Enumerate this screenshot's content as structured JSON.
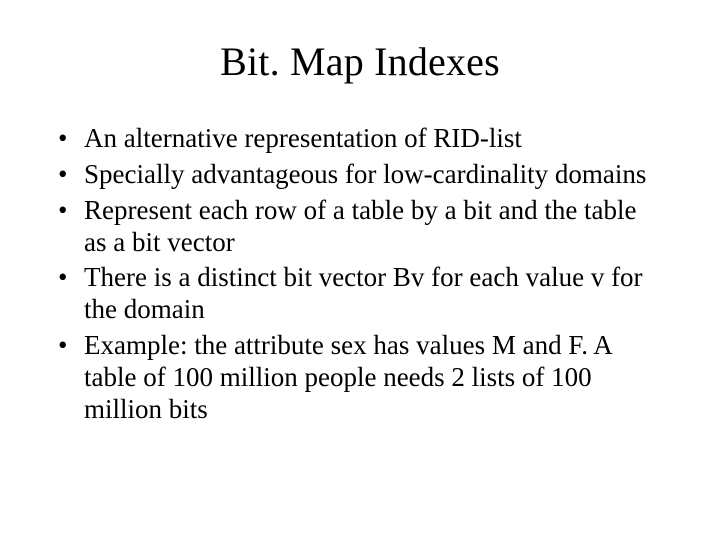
{
  "slide": {
    "title": "Bit. Map Indexes",
    "bullets": [
      "An alternative representation of RID-list",
      "Specially advantageous for low-cardinality domains",
      "Represent each row of  a table by a bit and the table as a bit vector",
      "There is a distinct bit vector Bv for each value v for the domain",
      "Example:  the attribute sex has values M and F.  A table of 100 million people needs 2 lists of 100 million bits"
    ],
    "title_fontsize": 40,
    "body_fontsize": 27,
    "text_color": "#000000",
    "background_color": "#ffffff",
    "font_family": "Times New Roman"
  }
}
